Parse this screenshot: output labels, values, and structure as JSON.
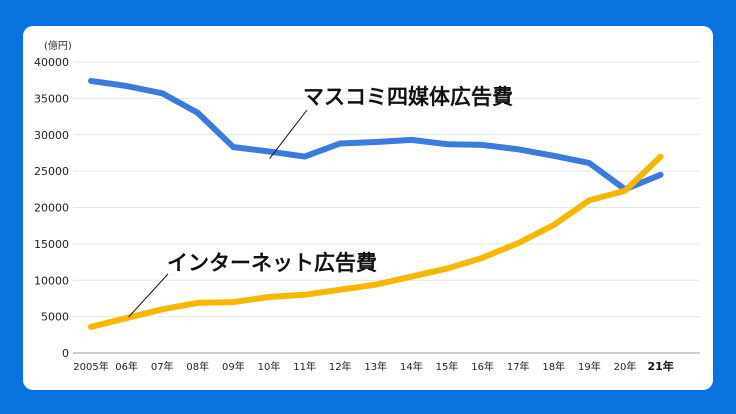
{
  "chart_data": {
    "type": "line",
    "unit_label": "(億円)",
    "y_ticks": [
      "0",
      "5000",
      "10000",
      "15000",
      "20000",
      "25000",
      "30000",
      "35000",
      "40000"
    ],
    "ylim": [
      0,
      40000
    ],
    "x_labels": [
      "2005年",
      "06年",
      "07年",
      "08年",
      "09年",
      "10年",
      "11年",
      "12年",
      "13年",
      "14年",
      "15年",
      "16年",
      "17年",
      "18年",
      "19年",
      "20年",
      "21年"
    ],
    "grid": true,
    "series": [
      {
        "name": "マスコミ四媒体広告費",
        "color": "#3b7be0",
        "values": [
          37400,
          36700,
          35700,
          33000,
          28300,
          27700,
          27000,
          28800,
          29000,
          29300,
          28700,
          28600,
          28000,
          27100,
          26100,
          22500,
          24500
        ]
      },
      {
        "name": "インターネット広告費",
        "color": "#f5b800",
        "values": [
          3600,
          4800,
          6000,
          6900,
          7000,
          7700,
          8000,
          8700,
          9400,
          10500,
          11600,
          13100,
          15100,
          17600,
          21000,
          22300,
          27000
        ]
      }
    ]
  }
}
